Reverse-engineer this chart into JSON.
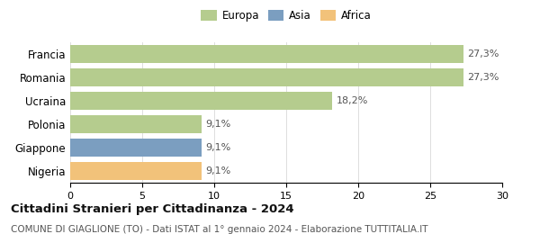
{
  "categories": [
    "Francia",
    "Romania",
    "Ucraina",
    "Polonia",
    "Giappone",
    "Nigeria"
  ],
  "values": [
    27.3,
    27.3,
    18.2,
    9.1,
    9.1,
    9.1
  ],
  "labels": [
    "27,3%",
    "27,3%",
    "18,2%",
    "9,1%",
    "9,1%",
    "9,1%"
  ],
  "bar_colors": [
    "#b5cc8e",
    "#b5cc8e",
    "#b5cc8e",
    "#b5cc8e",
    "#7b9ec0",
    "#f2c27a"
  ],
  "legend_items": [
    {
      "label": "Europa",
      "color": "#b5cc8e"
    },
    {
      "label": "Asia",
      "color": "#7b9ec0"
    },
    {
      "label": "Africa",
      "color": "#f2c27a"
    }
  ],
  "xlim": [
    0,
    30
  ],
  "xticks": [
    0,
    5,
    10,
    15,
    20,
    25,
    30
  ],
  "title": "Cittadini Stranieri per Cittadinanza - 2024",
  "subtitle": "COMUNE DI GIAGLIONE (TO) - Dati ISTAT al 1° gennaio 2024 - Elaborazione TUTTITALIA.IT",
  "title_fontsize": 9.5,
  "subtitle_fontsize": 7.5,
  "background_color": "#ffffff",
  "bar_height": 0.75,
  "label_fontsize": 8,
  "tick_fontsize": 8,
  "ytick_fontsize": 8.5
}
